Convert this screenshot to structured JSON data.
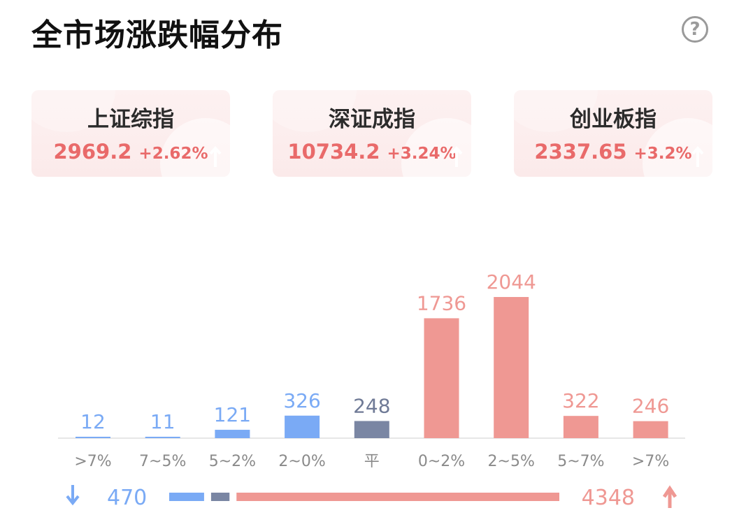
{
  "title": "全市场涨跌幅分布",
  "help_label": "?",
  "colors": {
    "down": "#7aaaf5",
    "flat": "#7a86a3",
    "up": "#ef9893",
    "up_text": "#e96a6a"
  },
  "indices": [
    {
      "name": "上证综指",
      "value": "2969.2",
      "change": "+2.62%"
    },
    {
      "name": "深证成指",
      "value": "10734.2",
      "change": "+3.24%"
    },
    {
      "name": "创业板指",
      "value": "2337.65",
      "change": "+3.2%"
    }
  ],
  "chart_data": {
    "type": "bar",
    "title": "",
    "xlabel": "",
    "ylabel": "",
    "categories": [
      ">7%",
      "7~5%",
      "5~2%",
      "2~0%",
      "平",
      "0~2%",
      "2~5%",
      "5~7%",
      ">7%"
    ],
    "values": [
      12,
      11,
      121,
      326,
      248,
      1736,
      2044,
      322,
      246
    ],
    "groups": [
      "down",
      "down",
      "down",
      "down",
      "flat",
      "up",
      "up",
      "up",
      "up"
    ],
    "ylim": [
      0,
      2044
    ],
    "grid": false,
    "legend": "none"
  },
  "summary": {
    "down_total": "470",
    "up_total": "4348",
    "flat_total": 248
  }
}
